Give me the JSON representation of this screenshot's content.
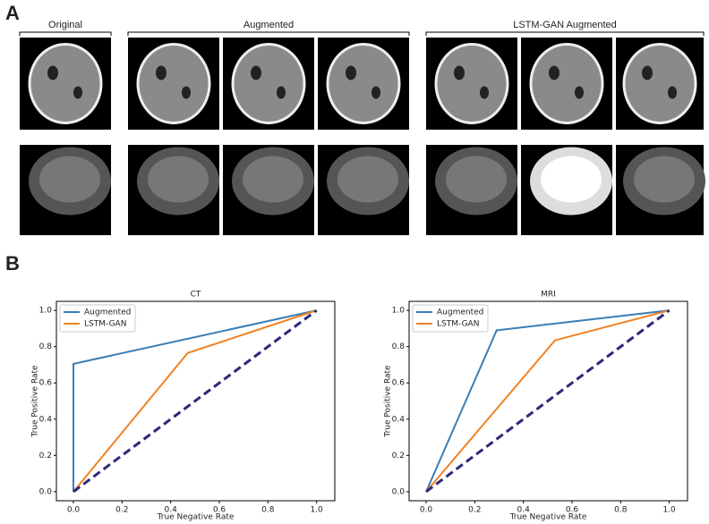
{
  "panel_a": {
    "label": "A",
    "groups": [
      "Original",
      "Augmented",
      "LSTM-GAN Augmented"
    ]
  },
  "panel_b": {
    "label": "B"
  },
  "chart_data": [
    {
      "type": "line",
      "title": "CT",
      "xlabel": "True Negative Rate",
      "ylabel": "True Positive Rate",
      "xlim": [
        -0.07,
        1.075
      ],
      "ylim": [
        -0.05,
        1.05
      ],
      "xticks": [
        {
          "value": 0,
          "label": "0.0"
        },
        {
          "value": 0.2,
          "label": "0.2"
        },
        {
          "value": 0.4,
          "label": "0.4"
        },
        {
          "value": 0.6,
          "label": "0.6"
        },
        {
          "value": 0.8,
          "label": "0.8"
        },
        {
          "value": 1,
          "label": "1.0"
        }
      ],
      "yticks": [
        {
          "value": 0,
          "label": "0.0"
        },
        {
          "value": 0.2,
          "label": "0.2"
        },
        {
          "value": 0.4,
          "label": "0.4"
        },
        {
          "value": 0.6,
          "label": "0.6"
        },
        {
          "value": 0.8,
          "label": "0.8"
        },
        {
          "value": 1,
          "label": "1.0"
        }
      ],
      "legend": "upper left",
      "series": [
        {
          "name": "Augmented",
          "color": "#3a7db5",
          "x": [
            0,
            0,
            1
          ],
          "values": [
            0,
            0.705,
            1
          ]
        },
        {
          "name": "LSTM-GAN",
          "color": "#f08224",
          "x": [
            0,
            0.47,
            1
          ],
          "values": [
            0,
            0.765,
            1
          ]
        },
        {
          "color": "#2f2a7c",
          "dashed": true,
          "x": [
            0,
            1
          ],
          "values": [
            0,
            1
          ]
        }
      ]
    },
    {
      "type": "line",
      "title": "MRI",
      "xlabel": "True Negative Rate",
      "ylabel": "True Positive Rate",
      "xlim": [
        -0.07,
        1.075
      ],
      "ylim": [
        -0.05,
        1.05
      ],
      "xticks": [
        {
          "value": 0,
          "label": "0.0"
        },
        {
          "value": 0.2,
          "label": "0.2"
        },
        {
          "value": 0.4,
          "label": "0.4"
        },
        {
          "value": 0.6,
          "label": "0.6"
        },
        {
          "value": 0.8,
          "label": "0.8"
        },
        {
          "value": 1,
          "label": "1.0"
        }
      ],
      "yticks": [
        {
          "value": 0,
          "label": "0.0"
        },
        {
          "value": 0.2,
          "label": "0.2"
        },
        {
          "value": 0.4,
          "label": "0.4"
        },
        {
          "value": 0.6,
          "label": "0.6"
        },
        {
          "value": 0.8,
          "label": "0.8"
        },
        {
          "value": 1,
          "label": "1.0"
        }
      ],
      "legend": "upper left",
      "series": [
        {
          "name": "Augmented",
          "color": "#3a7db5",
          "x": [
            0,
            0.29,
            1
          ],
          "values": [
            0,
            0.89,
            1
          ]
        },
        {
          "name": "LSTM-GAN",
          "color": "#f08224",
          "x": [
            0,
            0.53,
            1
          ],
          "values": [
            0,
            0.835,
            1
          ]
        },
        {
          "color": "#2f2a7c",
          "dashed": true,
          "x": [
            0,
            1
          ],
          "values": [
            0,
            1
          ]
        }
      ]
    }
  ]
}
